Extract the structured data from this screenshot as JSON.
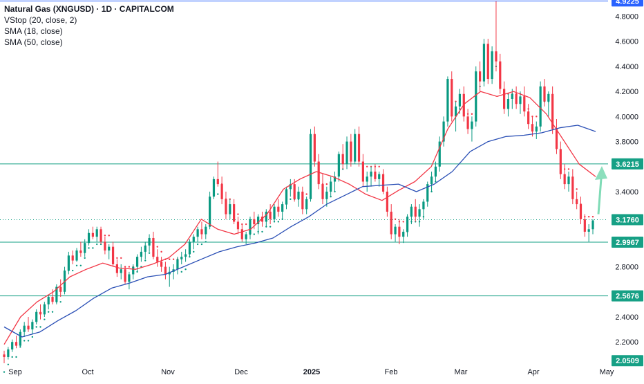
{
  "legend": {
    "title": "Natural Gas (XNGUSD) · 1D · CAPITALCOM",
    "vstop": "VStop (20, close, 2)",
    "sma18": "SMA (18, close)",
    "sma50": "SMA (50, close)"
  },
  "colors": {
    "up": "#089981",
    "down": "#f23645",
    "sma18": "#f23645",
    "sma50": "#2a4fb5",
    "level": "#16a085",
    "hline_top": "#2962ff",
    "arrow": "#7fdbb6",
    "axis_text": "#131722"
  },
  "chart_data": {
    "type": "candlestick",
    "title": "Natural Gas (XNGUSD) · 1D · CAPITALCOM",
    "xlabel": "",
    "ylabel": "",
    "ylim": [
      2.03,
      4.93
    ],
    "grid": false,
    "x_tick_labels": [
      "Sep",
      "Oct",
      "Nov",
      "Dec",
      "2025",
      "Feb",
      "Mar",
      "Apr",
      "May"
    ],
    "y_tick_labels": [
      "4.8000",
      "4.6000",
      "4.4000",
      "4.2000",
      "4.0000",
      "3.8000",
      "3.4000",
      "2.8000",
      "2.4000",
      "2.2000"
    ],
    "price_labels": [
      {
        "value": 4.9225,
        "label": "4.9225",
        "style": "blue"
      },
      {
        "value": 3.6215,
        "label": "3.6215",
        "style": "teal"
      },
      {
        "value": 3.176,
        "label": "3.1760",
        "style": "teal"
      },
      {
        "value": 2.9967,
        "label": "2.9967",
        "style": "teal"
      },
      {
        "value": 2.5676,
        "label": "2.5676",
        "style": "teal"
      },
      {
        "value": 2.0509,
        "label": "2.0509",
        "style": "teal"
      }
    ],
    "horizontal_levels": [
      4.9225,
      3.6215,
      2.9967,
      2.5676
    ],
    "dotted_level": 3.176,
    "projection_arrow": {
      "from": 3.22,
      "to": 3.56
    },
    "series": [
      {
        "name": "VStop (20, close, 2)",
        "type": "dots"
      },
      {
        "name": "SMA (18, close)",
        "type": "line",
        "values": [
          2.18,
          2.4,
          2.52,
          2.6,
          2.72,
          2.78,
          2.83,
          2.79,
          2.78,
          2.82,
          2.87,
          2.98,
          3.18,
          3.1,
          3.06,
          3.1,
          3.22,
          3.42,
          3.5,
          3.56,
          3.52,
          3.46,
          3.38,
          3.33,
          3.41,
          3.48,
          3.6,
          3.9,
          4.1,
          4.2,
          4.16,
          4.2,
          4.15,
          4.02,
          3.82,
          3.62,
          3.52
        ]
      },
      {
        "name": "SMA (50, close)",
        "type": "line",
        "values": [
          2.32,
          2.24,
          2.28,
          2.37,
          2.45,
          2.55,
          2.63,
          2.67,
          2.72,
          2.74,
          2.8,
          2.86,
          2.92,
          2.96,
          2.99,
          3.03,
          3.12,
          3.2,
          3.3,
          3.37,
          3.44,
          3.45,
          3.46,
          3.4,
          3.46,
          3.56,
          3.72,
          3.8,
          3.84,
          3.85,
          3.87,
          3.91,
          3.93,
          3.88
        ]
      }
    ],
    "ohlc": [
      [
        2.1,
        2.13,
        2.03,
        2.08
      ],
      [
        2.08,
        2.16,
        2.06,
        2.14
      ],
      [
        2.14,
        2.22,
        2.12,
        2.2
      ],
      [
        2.2,
        2.25,
        2.15,
        2.17
      ],
      [
        2.17,
        2.3,
        2.16,
        2.28
      ],
      [
        2.28,
        2.36,
        2.24,
        2.33
      ],
      [
        2.33,
        2.4,
        2.28,
        2.3
      ],
      [
        2.3,
        2.38,
        2.26,
        2.36
      ],
      [
        2.36,
        2.46,
        2.34,
        2.44
      ],
      [
        2.44,
        2.5,
        2.38,
        2.42
      ],
      [
        2.42,
        2.52,
        2.4,
        2.5
      ],
      [
        2.5,
        2.58,
        2.46,
        2.56
      ],
      [
        2.56,
        2.62,
        2.5,
        2.52
      ],
      [
        2.52,
        2.66,
        2.5,
        2.64
      ],
      [
        2.64,
        2.7,
        2.56,
        2.6
      ],
      [
        2.6,
        2.8,
        2.58,
        2.77
      ],
      [
        2.77,
        2.92,
        2.74,
        2.89
      ],
      [
        2.89,
        2.93,
        2.82,
        2.85
      ],
      [
        2.85,
        2.95,
        2.84,
        2.93
      ],
      [
        2.93,
        3.0,
        2.88,
        2.91
      ],
      [
        2.91,
        3.02,
        2.88,
        2.99
      ],
      [
        2.99,
        3.1,
        2.97,
        3.07
      ],
      [
        3.07,
        3.12,
        3.02,
        3.04
      ],
      [
        3.04,
        3.12,
        3.0,
        3.1
      ],
      [
        3.1,
        3.12,
        2.98,
        3.0
      ],
      [
        3.0,
        3.04,
        2.9,
        2.93
      ],
      [
        2.93,
        2.98,
        2.86,
        2.96
      ],
      [
        2.96,
        3.0,
        2.8,
        2.82
      ],
      [
        2.82,
        2.86,
        2.72,
        2.75
      ],
      [
        2.75,
        2.82,
        2.7,
        2.78
      ],
      [
        2.78,
        2.8,
        2.66,
        2.68
      ],
      [
        2.68,
        2.76,
        2.62,
        2.74
      ],
      [
        2.74,
        2.82,
        2.7,
        2.8
      ],
      [
        2.8,
        2.9,
        2.76,
        2.88
      ],
      [
        2.88,
        2.96,
        2.84,
        2.92
      ],
      [
        2.92,
        3.0,
        2.86,
        2.97
      ],
      [
        2.97,
        3.06,
        2.92,
        3.03
      ],
      [
        3.03,
        3.08,
        2.86,
        2.88
      ],
      [
        2.88,
        2.94,
        2.8,
        2.84
      ],
      [
        2.84,
        2.88,
        2.76,
        2.8
      ],
      [
        2.8,
        2.84,
        2.7,
        2.74
      ],
      [
        2.74,
        2.8,
        2.64,
        2.76
      ],
      [
        2.76,
        2.82,
        2.7,
        2.78
      ],
      [
        2.78,
        2.88,
        2.74,
        2.86
      ],
      [
        2.86,
        2.92,
        2.82,
        2.88
      ],
      [
        2.88,
        2.94,
        2.84,
        2.9
      ],
      [
        2.9,
        3.02,
        2.88,
        3.0
      ],
      [
        3.0,
        3.06,
        2.94,
        3.04
      ],
      [
        3.04,
        3.12,
        3.0,
        3.1
      ],
      [
        3.1,
        3.16,
        3.02,
        3.06
      ],
      [
        3.06,
        3.14,
        3.02,
        3.12
      ],
      [
        3.12,
        3.4,
        3.1,
        3.36
      ],
      [
        3.36,
        3.52,
        3.34,
        3.5
      ],
      [
        3.5,
        3.64,
        3.44,
        3.46
      ],
      [
        3.46,
        3.52,
        3.3,
        3.34
      ],
      [
        3.34,
        3.4,
        3.18,
        3.22
      ],
      [
        3.22,
        3.34,
        3.18,
        3.3
      ],
      [
        3.3,
        3.34,
        3.14,
        3.16
      ],
      [
        3.16,
        3.2,
        3.06,
        3.1
      ],
      [
        3.1,
        3.14,
        3.0,
        3.02
      ],
      [
        3.02,
        3.08,
        2.98,
        3.06
      ],
      [
        3.06,
        3.2,
        3.02,
        3.18
      ],
      [
        3.18,
        3.24,
        3.1,
        3.14
      ],
      [
        3.14,
        3.22,
        3.06,
        3.2
      ],
      [
        3.2,
        3.24,
        3.12,
        3.16
      ],
      [
        3.16,
        3.26,
        3.12,
        3.24
      ],
      [
        3.24,
        3.3,
        3.14,
        3.18
      ],
      [
        3.18,
        3.3,
        3.16,
        3.28
      ],
      [
        3.28,
        3.34,
        3.2,
        3.24
      ],
      [
        3.24,
        3.32,
        3.18,
        3.3
      ],
      [
        3.3,
        3.44,
        3.26,
        3.42
      ],
      [
        3.42,
        3.5,
        3.36,
        3.46
      ],
      [
        3.46,
        3.5,
        3.32,
        3.34
      ],
      [
        3.34,
        3.44,
        3.28,
        3.4
      ],
      [
        3.4,
        3.44,
        3.22,
        3.26
      ],
      [
        3.26,
        3.36,
        3.22,
        3.34
      ],
      [
        3.34,
        3.9,
        3.32,
        3.86
      ],
      [
        3.86,
        3.92,
        3.6,
        3.64
      ],
      [
        3.64,
        3.7,
        3.42,
        3.46
      ],
      [
        3.46,
        3.54,
        3.3,
        3.34
      ],
      [
        3.34,
        3.44,
        3.28,
        3.4
      ],
      [
        3.4,
        3.52,
        3.36,
        3.48
      ],
      [
        3.48,
        3.56,
        3.4,
        3.52
      ],
      [
        3.52,
        3.72,
        3.48,
        3.7
      ],
      [
        3.7,
        3.78,
        3.58,
        3.62
      ],
      [
        3.62,
        3.84,
        3.58,
        3.8
      ],
      [
        3.8,
        3.86,
        3.6,
        3.64
      ],
      [
        3.64,
        3.9,
        3.62,
        3.86
      ],
      [
        3.86,
        3.92,
        3.6,
        3.64
      ],
      [
        3.64,
        3.7,
        3.44,
        3.48
      ],
      [
        3.48,
        3.56,
        3.4,
        3.52
      ],
      [
        3.52,
        3.6,
        3.44,
        3.56
      ],
      [
        3.56,
        3.62,
        3.48,
        3.5
      ],
      [
        3.5,
        3.56,
        3.44,
        3.54
      ],
      [
        3.54,
        3.58,
        3.38,
        3.4
      ],
      [
        3.4,
        3.44,
        3.2,
        3.24
      ],
      [
        3.24,
        3.3,
        3.02,
        3.06
      ],
      [
        3.06,
        3.14,
        3.0,
        3.12
      ],
      [
        3.12,
        3.18,
        2.98,
        3.04
      ],
      [
        3.04,
        3.1,
        2.99,
        3.08
      ],
      [
        3.08,
        3.22,
        3.04,
        3.2
      ],
      [
        3.2,
        3.3,
        3.14,
        3.28
      ],
      [
        3.28,
        3.34,
        3.16,
        3.2
      ],
      [
        3.2,
        3.3,
        3.12,
        3.26
      ],
      [
        3.26,
        3.34,
        3.18,
        3.32
      ],
      [
        3.32,
        3.48,
        3.28,
        3.46
      ],
      [
        3.46,
        3.56,
        3.4,
        3.52
      ],
      [
        3.52,
        3.64,
        3.48,
        3.6
      ],
      [
        3.6,
        3.84,
        3.56,
        3.8
      ],
      [
        3.8,
        4.0,
        3.76,
        3.96
      ],
      [
        3.96,
        4.32,
        3.92,
        4.3
      ],
      [
        4.3,
        4.36,
        3.96,
        4.0
      ],
      [
        4.0,
        4.12,
        3.88,
        4.08
      ],
      [
        4.08,
        4.22,
        4.02,
        4.18
      ],
      [
        4.18,
        4.24,
        3.96,
        4.0
      ],
      [
        4.0,
        4.06,
        3.86,
        3.9
      ],
      [
        3.9,
        4.0,
        3.8,
        3.96
      ],
      [
        3.96,
        4.4,
        3.92,
        4.36
      ],
      [
        4.36,
        4.44,
        4.2,
        4.28
      ],
      [
        4.28,
        4.62,
        4.24,
        4.58
      ],
      [
        4.58,
        4.62,
        4.26,
        4.3
      ],
      [
        4.3,
        4.56,
        4.26,
        4.52
      ],
      [
        4.52,
        4.92,
        4.36,
        4.44
      ],
      [
        4.44,
        4.5,
        4.18,
        4.22
      ],
      [
        4.22,
        4.28,
        4.02,
        4.06
      ],
      [
        4.06,
        4.18,
        4.0,
        4.14
      ],
      [
        4.14,
        4.22,
        4.06,
        4.18
      ],
      [
        4.18,
        4.24,
        4.06,
        4.1
      ],
      [
        4.1,
        4.2,
        4.02,
        4.16
      ],
      [
        4.16,
        4.24,
        4.0,
        4.04
      ],
      [
        4.04,
        4.1,
        3.9,
        3.94
      ],
      [
        3.94,
        4.0,
        3.84,
        3.88
      ],
      [
        3.88,
        3.96,
        3.82,
        3.92
      ],
      [
        3.92,
        4.28,
        3.88,
        4.24
      ],
      [
        4.24,
        4.3,
        4.08,
        4.12
      ],
      [
        4.12,
        4.2,
        4.0,
        4.18
      ],
      [
        4.18,
        4.24,
        3.86,
        3.9
      ],
      [
        3.9,
        3.98,
        3.7,
        3.74
      ],
      [
        3.74,
        3.8,
        3.5,
        3.54
      ],
      [
        3.54,
        3.62,
        3.42,
        3.46
      ],
      [
        3.46,
        3.56,
        3.4,
        3.52
      ],
      [
        3.52,
        3.58,
        3.3,
        3.34
      ],
      [
        3.34,
        3.4,
        3.26,
        3.3
      ],
      [
        3.3,
        3.36,
        3.14,
        3.18
      ],
      [
        3.18,
        3.22,
        3.04,
        3.08
      ],
      [
        3.08,
        3.14,
        3.0,
        3.1
      ],
      [
        3.1,
        3.18,
        3.06,
        3.17
      ]
    ]
  }
}
